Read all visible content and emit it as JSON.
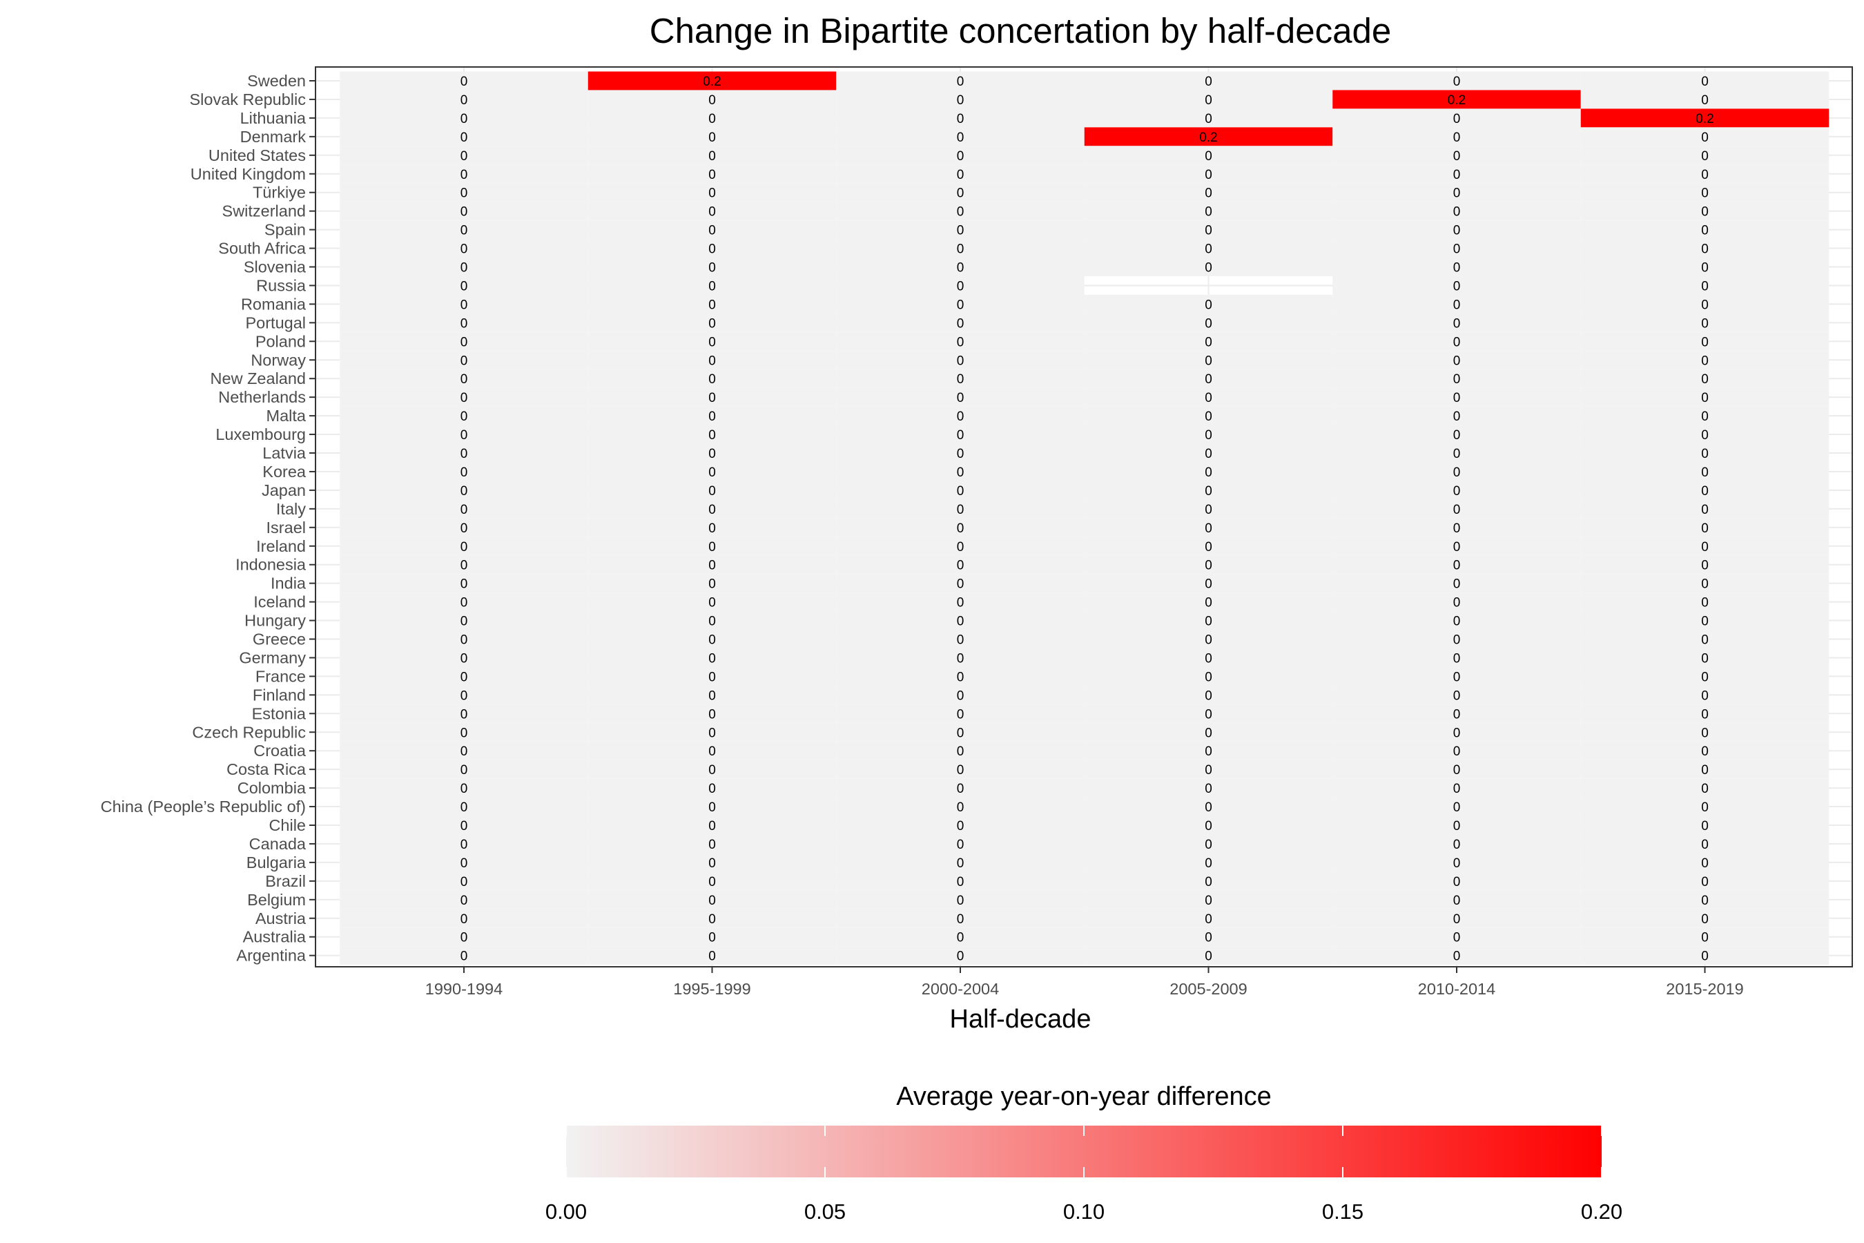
{
  "chart_data": {
    "type": "heatmap",
    "title": "Change in Bipartite concertation by half-decade",
    "xlabel": "Half-decade",
    "ylabel": "",
    "x": [
      "1990-1994",
      "1995-1999",
      "2000-2004",
      "2005-2009",
      "2010-2014",
      "2015-2019"
    ],
    "y": [
      "Sweden",
      "Slovak Republic",
      "Lithuania",
      "Denmark",
      "United States",
      "United Kingdom",
      "Türkiye",
      "Switzerland",
      "Spain",
      "South Africa",
      "Slovenia",
      "Russia",
      "Romania",
      "Portugal",
      "Poland",
      "Norway",
      "New Zealand",
      "Netherlands",
      "Malta",
      "Luxembourg",
      "Latvia",
      "Korea",
      "Japan",
      "Italy",
      "Israel",
      "Ireland",
      "Indonesia",
      "India",
      "Iceland",
      "Hungary",
      "Greece",
      "Germany",
      "France",
      "Finland",
      "Estonia",
      "Czech Republic",
      "Croatia",
      "Costa Rica",
      "Colombia",
      "China (People’s Republic of)",
      "Chile",
      "Canada",
      "Bulgaria",
      "Brazil",
      "Belgium",
      "Austria",
      "Australia",
      "Argentina"
    ],
    "nonzero_cells": [
      {
        "country": "Sweden",
        "period": "1995-1999",
        "value": 0.2,
        "label": "0.2"
      },
      {
        "country": "Slovak Republic",
        "period": "2010-2014",
        "value": 0.2,
        "label": "0.2"
      },
      {
        "country": "Lithuania",
        "period": "2015-2019",
        "value": 0.2,
        "label": "0.2"
      },
      {
        "country": "Denmark",
        "period": "2005-2009",
        "value": 0.2,
        "label": "0.2"
      }
    ],
    "missing_cells": [
      {
        "country": "Russia",
        "period": "2005-2009"
      }
    ],
    "default_value": 0,
    "default_label": "0",
    "color_scale": {
      "low": "#f2f2f2",
      "high": "#ff0000",
      "min": 0.0,
      "max": 0.2
    },
    "legend": {
      "title": "Average year-on-year difference",
      "ticks": [
        "0.00",
        "0.05",
        "0.10",
        "0.15",
        "0.20"
      ],
      "tick_values": [
        0.0,
        0.05,
        0.1,
        0.15,
        0.2
      ],
      "position": "bottom"
    }
  }
}
